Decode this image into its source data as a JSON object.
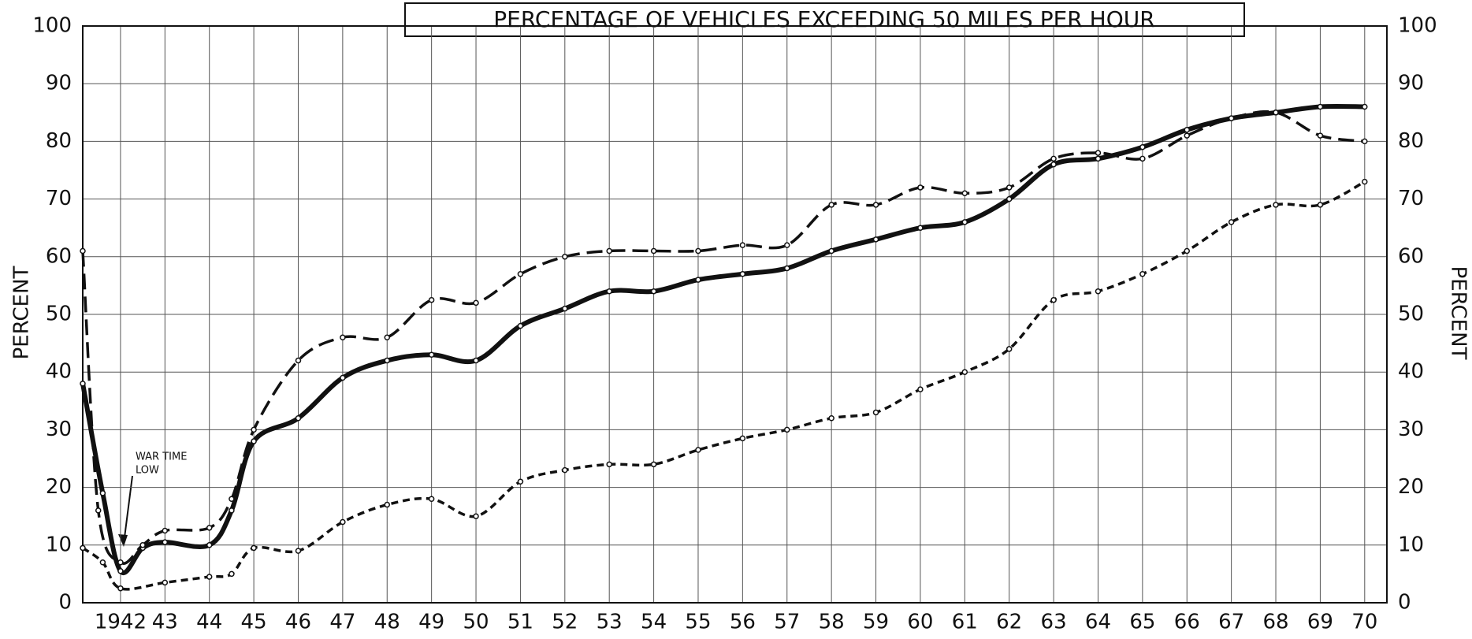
{
  "chart_data": {
    "type": "line",
    "title": "PERCENTAGE OF VEHICLES EXCEEDING 50 MILES PER HOUR",
    "ylabel": "PERCENT",
    "y2label": "PERCENT",
    "annotation": [
      "WAR TIME",
      "LOW"
    ],
    "xlim": [
      1941.15,
      1970.5
    ],
    "xticks": [
      {
        "value": 1942,
        "label": "1942"
      },
      {
        "value": 1943,
        "label": "43"
      },
      {
        "value": 1944,
        "label": "44"
      },
      {
        "value": 1945,
        "label": "45"
      },
      {
        "value": 1946,
        "label": "46"
      },
      {
        "value": 1947,
        "label": "47"
      },
      {
        "value": 1948,
        "label": "48"
      },
      {
        "value": 1949,
        "label": "49"
      },
      {
        "value": 1950,
        "label": "50"
      },
      {
        "value": 1951,
        "label": "51"
      },
      {
        "value": 1952,
        "label": "52"
      },
      {
        "value": 1953,
        "label": "53"
      },
      {
        "value": 1954,
        "label": "54"
      },
      {
        "value": 1955,
        "label": "55"
      },
      {
        "value": 1956,
        "label": "56"
      },
      {
        "value": 1957,
        "label": "57"
      },
      {
        "value": 1958,
        "label": "58"
      },
      {
        "value": 1959,
        "label": "59"
      },
      {
        "value": 1960,
        "label": "60"
      },
      {
        "value": 1961,
        "label": "61"
      },
      {
        "value": 1962,
        "label": "62"
      },
      {
        "value": 1963,
        "label": "63"
      },
      {
        "value": 1964,
        "label": "64"
      },
      {
        "value": 1965,
        "label": "65"
      },
      {
        "value": 1966,
        "label": "66"
      },
      {
        "value": 1967,
        "label": "67"
      },
      {
        "value": 1968,
        "label": "68"
      },
      {
        "value": 1969,
        "label": "69"
      },
      {
        "value": 1970,
        "label": "70"
      }
    ],
    "ylim": [
      0,
      100
    ],
    "yticks": [
      0,
      10,
      20,
      30,
      40,
      50,
      60,
      70,
      80,
      90,
      100
    ],
    "y2lim": [
      0,
      100
    ],
    "y2ticks": [
      0,
      10,
      20,
      30,
      40,
      50,
      60,
      70,
      80,
      90,
      100
    ],
    "grid": true,
    "series": [
      {
        "color": "#111111",
        "line_style": "solid",
        "x": [
          1941.15,
          1941.6,
          1942,
          1942.5,
          1943,
          1944,
          1944.5,
          1945,
          1946,
          1947,
          1948,
          1949,
          1950,
          1951,
          1952,
          1953,
          1954,
          1955,
          1956,
          1957,
          1958,
          1959,
          1960,
          1961,
          1962,
          1963,
          1964,
          1965,
          1966,
          1967,
          1968,
          1969,
          1970
        ],
        "values": [
          38,
          19,
          5.5,
          9.5,
          10.5,
          10,
          16,
          28,
          32,
          39,
          42,
          43,
          42,
          48,
          51,
          54,
          54,
          56,
          57,
          58,
          61,
          63,
          65,
          66,
          70,
          76,
          77,
          79,
          82,
          84,
          85,
          86,
          86
        ]
      },
      {
        "color": "#111111",
        "line_style": "dashed",
        "x": [
          1941.15,
          1941.5,
          1942,
          1942.5,
          1943,
          1944,
          1944.5,
          1945,
          1946,
          1947,
          1948,
          1949,
          1950,
          1951,
          1952,
          1953,
          1954,
          1955,
          1956,
          1957,
          1958,
          1959,
          1960,
          1961,
          1962,
          1963,
          1964,
          1965,
          1966,
          1967,
          1968,
          1969,
          1970
        ],
        "values": [
          61,
          16,
          7,
          10,
          12.5,
          13,
          18,
          30,
          42,
          46,
          46,
          52.5,
          52,
          57,
          60,
          61,
          61,
          61,
          62,
          62,
          69,
          69,
          72,
          71,
          72,
          77,
          78,
          77,
          81,
          84,
          85,
          81,
          80
        ]
      },
      {
        "color": "#111111",
        "line_style": "dotted",
        "x": [
          1941.15,
          1941.6,
          1942,
          1943,
          1944,
          1944.5,
          1945,
          1946,
          1947,
          1948,
          1949,
          1950,
          1951,
          1952,
          1953,
          1954,
          1955,
          1956,
          1957,
          1958,
          1959,
          1960,
          1961,
          1962,
          1963,
          1964,
          1965,
          1966,
          1967,
          1968,
          1969,
          1970
        ],
        "values": [
          9.5,
          7,
          2.5,
          3.5,
          4.5,
          5,
          9.5,
          9,
          14,
          17,
          18,
          15,
          21,
          23,
          24,
          24,
          26.5,
          28.5,
          30,
          32,
          33,
          37,
          40,
          44,
          52.5,
          54,
          57,
          61,
          66,
          69,
          69,
          73
        ]
      }
    ]
  }
}
